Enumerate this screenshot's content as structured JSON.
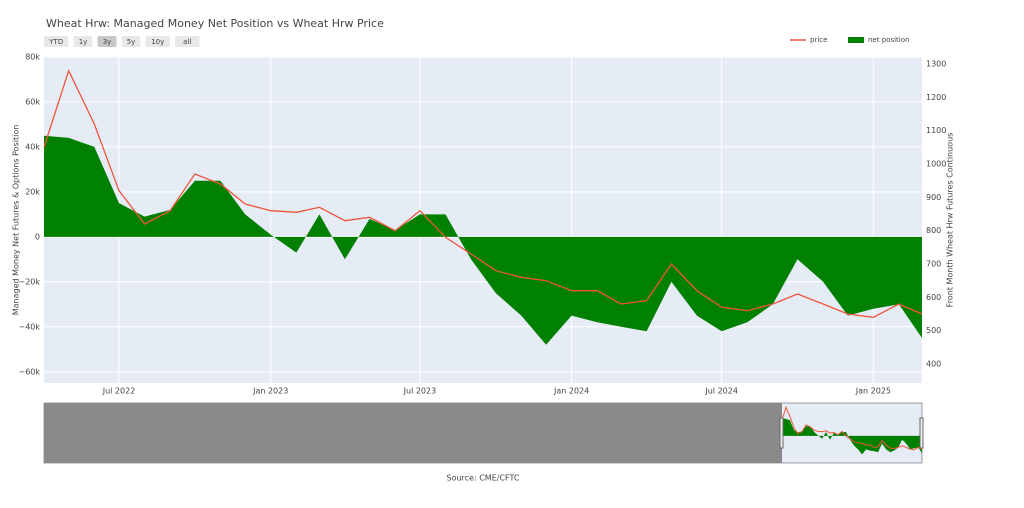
{
  "chart_data": {
    "type": "area_line",
    "title": "Wheat Hrw: Managed Money Net Position vs Wheat Hrw Price",
    "range_buttons": [
      "YTD",
      "1y",
      "3y",
      "5y",
      "10y",
      "all"
    ],
    "selected_button": "3y",
    "y_label": "Managed Money Net Futures & Options Position",
    "y2_label": "Front Month Wheat Hrw Futures Continuous",
    "source": "Source: CME/CFTC",
    "x": [
      "2022-04",
      "2022-05",
      "2022-06",
      "2022-07",
      "2022-08",
      "2022-09",
      "2022-10",
      "2022-11",
      "2022-12",
      "2023-01",
      "2023-02",
      "2023-03",
      "2023-04",
      "2023-05",
      "2023-06",
      "2023-07",
      "2023-08",
      "2023-09",
      "2023-10",
      "2023-11",
      "2023-12",
      "2024-01",
      "2024-02",
      "2024-03",
      "2024-04",
      "2024-05",
      "2024-06",
      "2024-07",
      "2024-08",
      "2024-09",
      "2024-10",
      "2024-11",
      "2024-12",
      "2025-01",
      "2025-02",
      "2025-03"
    ],
    "series": [
      {
        "name": "net position",
        "color": "#008000",
        "kind": "area",
        "values": [
          45000,
          44000,
          40000,
          15000,
          9000,
          12000,
          25000,
          25000,
          10000,
          1000,
          -7000,
          10000,
          -10000,
          8000,
          3000,
          10000,
          10000,
          -10000,
          -25000,
          -35000,
          -48000,
          -35000,
          -38000,
          -40000,
          -42000,
          -20000,
          -35000,
          -42000,
          -38000,
          -30000,
          -10000,
          -20000,
          -35000,
          -32000,
          -30000,
          -45000
        ]
      },
      {
        "name": "price",
        "color": "#ef553b",
        "kind": "line",
        "axis": "y2",
        "values": [
          1050,
          1280,
          1120,
          920,
          820,
          860,
          970,
          940,
          880,
          860,
          855,
          870,
          830,
          840,
          800,
          860,
          780,
          730,
          680,
          660,
          650,
          620,
          620,
          580,
          590,
          700,
          620,
          570,
          560,
          580,
          610,
          580,
          550,
          540,
          580,
          550
        ]
      }
    ],
    "xlim": [
      "2022-04",
      "2025-03"
    ],
    "xticks": [
      {
        "value": "2022-07",
        "label": "Jul 2022"
      },
      {
        "value": "2023-01",
        "label": "Jan 2023"
      },
      {
        "value": "2023-07",
        "label": "Jul 2023"
      },
      {
        "value": "2024-01",
        "label": "Jan 2024"
      },
      {
        "value": "2024-07",
        "label": "Jul 2024"
      },
      {
        "value": "2025-01",
        "label": "Jan 2025"
      }
    ],
    "ylim": [
      -65000,
      80000
    ],
    "yticks": [
      {
        "value": -60000,
        "label": "−60k"
      },
      {
        "value": -40000,
        "label": "−40k"
      },
      {
        "value": -20000,
        "label": "−20k"
      },
      0,
      {
        "value": 20000,
        "label": "20k"
      },
      {
        "value": 40000,
        "label": "40k"
      },
      {
        "value": 60000,
        "label": "60k"
      },
      {
        "value": 80000,
        "label": "80k"
      }
    ],
    "y2lim": [
      343,
      1321
    ],
    "y2ticks": [
      400,
      500,
      600,
      700,
      800,
      900,
      1000,
      1100,
      1200,
      1300
    ],
    "grid": true
  }
}
